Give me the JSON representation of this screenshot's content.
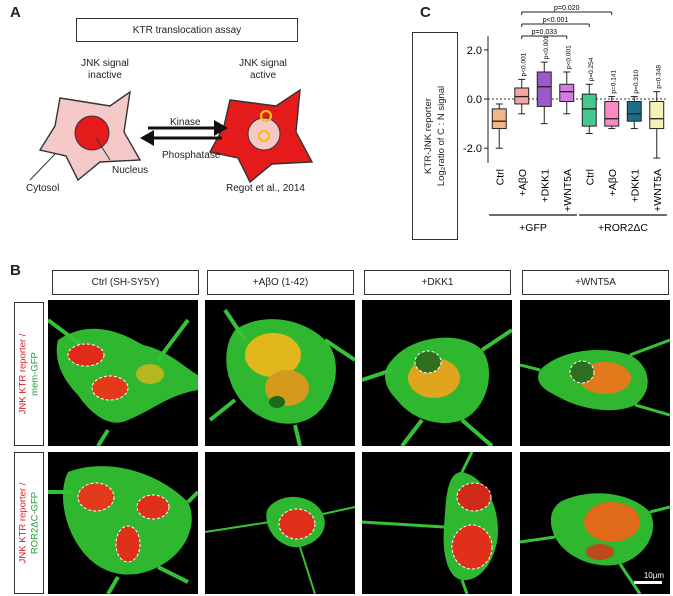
{
  "panel_a": {
    "letter": "A",
    "title": "KTR translocation assay",
    "left_state": [
      "JNK signal",
      "inactive"
    ],
    "right_state": [
      "JNK signal",
      "active"
    ],
    "kinase": "Kinase",
    "phosphatase": "Phosphatase",
    "cytosol": "Cytosol",
    "nucleus": "Nucleus",
    "citation": "Regot et al., 2014"
  },
  "panel_c": {
    "letter": "C",
    "ylabel_line1": "KTR-JNK reporter",
    "ylabel_line2": "Log₂ratio of C : N signal",
    "group_labels": [
      "+GFP",
      "+ROR2ΔC"
    ],
    "top_pvalues": [
      "p=0.020",
      "p<0.001",
      "p=0.033"
    ]
  },
  "chart_data": {
    "type": "box",
    "ylim": [
      -2.6,
      2.4
    ],
    "yticks": [
      -2.0,
      0.0,
      2.0
    ],
    "ytick_labels": [
      "-2.0",
      "0.0",
      "2.0"
    ],
    "reference_line": 0,
    "categories": [
      "Ctrl",
      "+AβO",
      "+DKK1",
      "+WNT5A",
      "Ctrl",
      "+AβO",
      "+DKK1",
      "+WNT5A"
    ],
    "groups": [
      "+GFP",
      "+GFP",
      "+GFP",
      "+GFP",
      "+ROR2ΔC",
      "+ROR2ΔC",
      "+ROR2ΔC",
      "+ROR2ΔC"
    ],
    "colors": [
      "#f5b58a",
      "#f6a3a3",
      "#9b59c9",
      "#d17ce0",
      "#45c98c",
      "#f58ac6",
      "#1c6e86",
      "#f3f3b8"
    ],
    "boxes": [
      {
        "min": -2.0,
        "q1": -1.2,
        "median": -0.9,
        "q3": -0.4,
        "max": -0.2,
        "pvalue": ""
      },
      {
        "min": -0.6,
        "q1": -0.2,
        "median": 0.1,
        "q3": 0.45,
        "max": 0.8,
        "pvalue": "p<0.001"
      },
      {
        "min": -1.0,
        "q1": -0.3,
        "median": 0.5,
        "q3": 1.1,
        "max": 1.5,
        "pvalue": "p<0.001"
      },
      {
        "min": -0.6,
        "q1": -0.1,
        "median": 0.3,
        "q3": 0.6,
        "max": 1.1,
        "pvalue": "p<0.001"
      },
      {
        "min": -1.4,
        "q1": -1.1,
        "median": -0.4,
        "q3": 0.2,
        "max": 0.6,
        "pvalue": "p=0.254"
      },
      {
        "min": -1.2,
        "q1": -1.1,
        "median": -0.8,
        "q3": -0.1,
        "max": 0.1,
        "pvalue": "p=0.141"
      },
      {
        "min": -1.2,
        "q1": -0.9,
        "median": -0.6,
        "q3": -0.1,
        "max": 0.1,
        "pvalue": "p=0.310"
      },
      {
        "min": -2.4,
        "q1": -1.2,
        "median": -0.8,
        "q3": -0.1,
        "max": 0.3,
        "pvalue": "p=0.348"
      }
    ],
    "comparisons": [
      {
        "from": 1,
        "to": 5,
        "label": "p=0.020"
      },
      {
        "from": 1,
        "to": 4,
        "label": "p<0.001"
      },
      {
        "from": 1,
        "to": 3,
        "label": "p=0.033"
      }
    ]
  },
  "panel_b": {
    "letter": "B",
    "columns": [
      "Ctrl (SH-SY5Y)",
      "+AβO (1-42)",
      "+DKK1",
      "+WNT5A"
    ],
    "row1_red": "JNK KTR reporter /",
    "row1_green": "mem-GFP",
    "row2_red": "JNK KTR reporter /",
    "row2_green": "ROR2ΔC-GFP",
    "scalebar": "10μm"
  }
}
